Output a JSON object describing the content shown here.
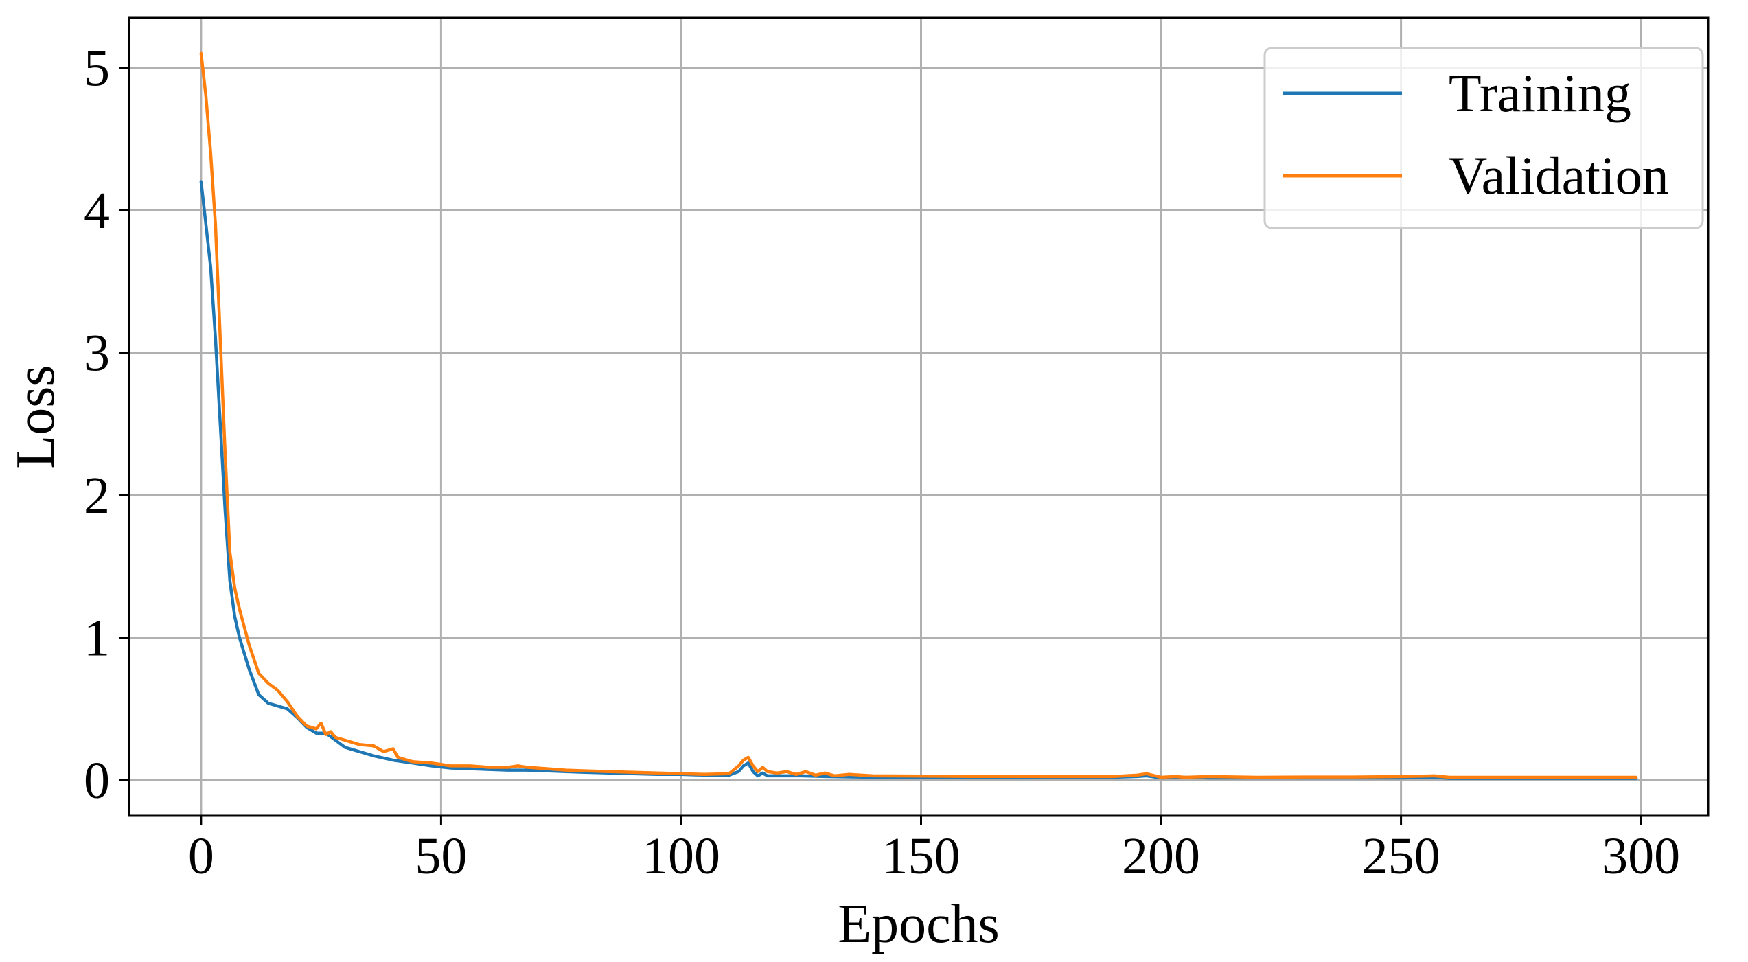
{
  "chart_data": {
    "type": "line",
    "title": "",
    "xlabel": "Epochs",
    "ylabel": "Loss",
    "xlim": [
      -15,
      314
    ],
    "ylim": [
      -0.25,
      5.35
    ],
    "xticks": [
      0,
      50,
      100,
      150,
      200,
      250,
      300
    ],
    "yticks": [
      0,
      1,
      2,
      3,
      4,
      5
    ],
    "xtick_labels": [
      "0",
      "50",
      "100",
      "150",
      "200",
      "250",
      "300"
    ],
    "ytick_labels": [
      "0",
      "1",
      "2",
      "3",
      "4",
      "5"
    ],
    "grid": true,
    "legend_position": "top-right",
    "series": [
      {
        "name": "Training",
        "color": "#1f77b4",
        "x": [
          0,
          1,
          2,
          3,
          4,
          5,
          6,
          7,
          8,
          10,
          12,
          14,
          16,
          18,
          20,
          22,
          24,
          26,
          28,
          30,
          33,
          36,
          40,
          44,
          48,
          52,
          56,
          60,
          64,
          68,
          72,
          76,
          80,
          85,
          90,
          95,
          100,
          105,
          110,
          112,
          113,
          114,
          115,
          116,
          117,
          118,
          120,
          125,
          130,
          140,
          150,
          160,
          170,
          180,
          190,
          195,
          197,
          200,
          205,
          210,
          220,
          230,
          240,
          250,
          255,
          257,
          260,
          270,
          280,
          290,
          299
        ],
        "y": [
          4.2,
          3.9,
          3.6,
          3.1,
          2.5,
          1.9,
          1.4,
          1.15,
          1.0,
          0.78,
          0.6,
          0.54,
          0.52,
          0.5,
          0.44,
          0.37,
          0.33,
          0.33,
          0.28,
          0.23,
          0.2,
          0.17,
          0.14,
          0.12,
          0.1,
          0.085,
          0.08,
          0.075,
          0.07,
          0.07,
          0.065,
          0.06,
          0.055,
          0.05,
          0.045,
          0.04,
          0.04,
          0.035,
          0.035,
          0.06,
          0.1,
          0.12,
          0.06,
          0.03,
          0.05,
          0.03,
          0.03,
          0.03,
          0.025,
          0.02,
          0.02,
          0.018,
          0.018,
          0.018,
          0.02,
          0.025,
          0.03,
          0.015,
          0.02,
          0.015,
          0.015,
          0.015,
          0.015,
          0.015,
          0.02,
          0.02,
          0.012,
          0.012,
          0.012,
          0.012,
          0.012
        ]
      },
      {
        "name": "Validation",
        "color": "#ff7f0e",
        "x": [
          0,
          1,
          2,
          3,
          4,
          5,
          6,
          7,
          8,
          10,
          12,
          14,
          16,
          18,
          20,
          22,
          24,
          25,
          26,
          27,
          28,
          30,
          33,
          36,
          38,
          40,
          41,
          44,
          48,
          52,
          56,
          60,
          64,
          66,
          68,
          72,
          76,
          80,
          85,
          90,
          95,
          100,
          105,
          110,
          112,
          113,
          114,
          115,
          116,
          117,
          118,
          120,
          122,
          124,
          126,
          128,
          130,
          132,
          135,
          140,
          150,
          160,
          170,
          180,
          190,
          195,
          197,
          200,
          203,
          205,
          210,
          220,
          230,
          240,
          250,
          255,
          257,
          260,
          265,
          270,
          280,
          290,
          299
        ],
        "y": [
          5.1,
          4.8,
          4.4,
          3.9,
          3.1,
          2.3,
          1.6,
          1.35,
          1.2,
          0.95,
          0.75,
          0.68,
          0.63,
          0.55,
          0.45,
          0.38,
          0.36,
          0.4,
          0.32,
          0.34,
          0.3,
          0.28,
          0.25,
          0.24,
          0.2,
          0.22,
          0.16,
          0.13,
          0.12,
          0.1,
          0.1,
          0.09,
          0.09,
          0.1,
          0.09,
          0.08,
          0.07,
          0.065,
          0.06,
          0.055,
          0.05,
          0.045,
          0.04,
          0.045,
          0.1,
          0.14,
          0.16,
          0.1,
          0.06,
          0.09,
          0.06,
          0.05,
          0.06,
          0.04,
          0.06,
          0.035,
          0.05,
          0.03,
          0.04,
          0.03,
          0.028,
          0.026,
          0.026,
          0.025,
          0.025,
          0.035,
          0.045,
          0.02,
          0.025,
          0.02,
          0.025,
          0.02,
          0.022,
          0.022,
          0.025,
          0.028,
          0.03,
          0.02,
          0.02,
          0.02,
          0.02,
          0.02,
          0.02
        ]
      }
    ]
  }
}
